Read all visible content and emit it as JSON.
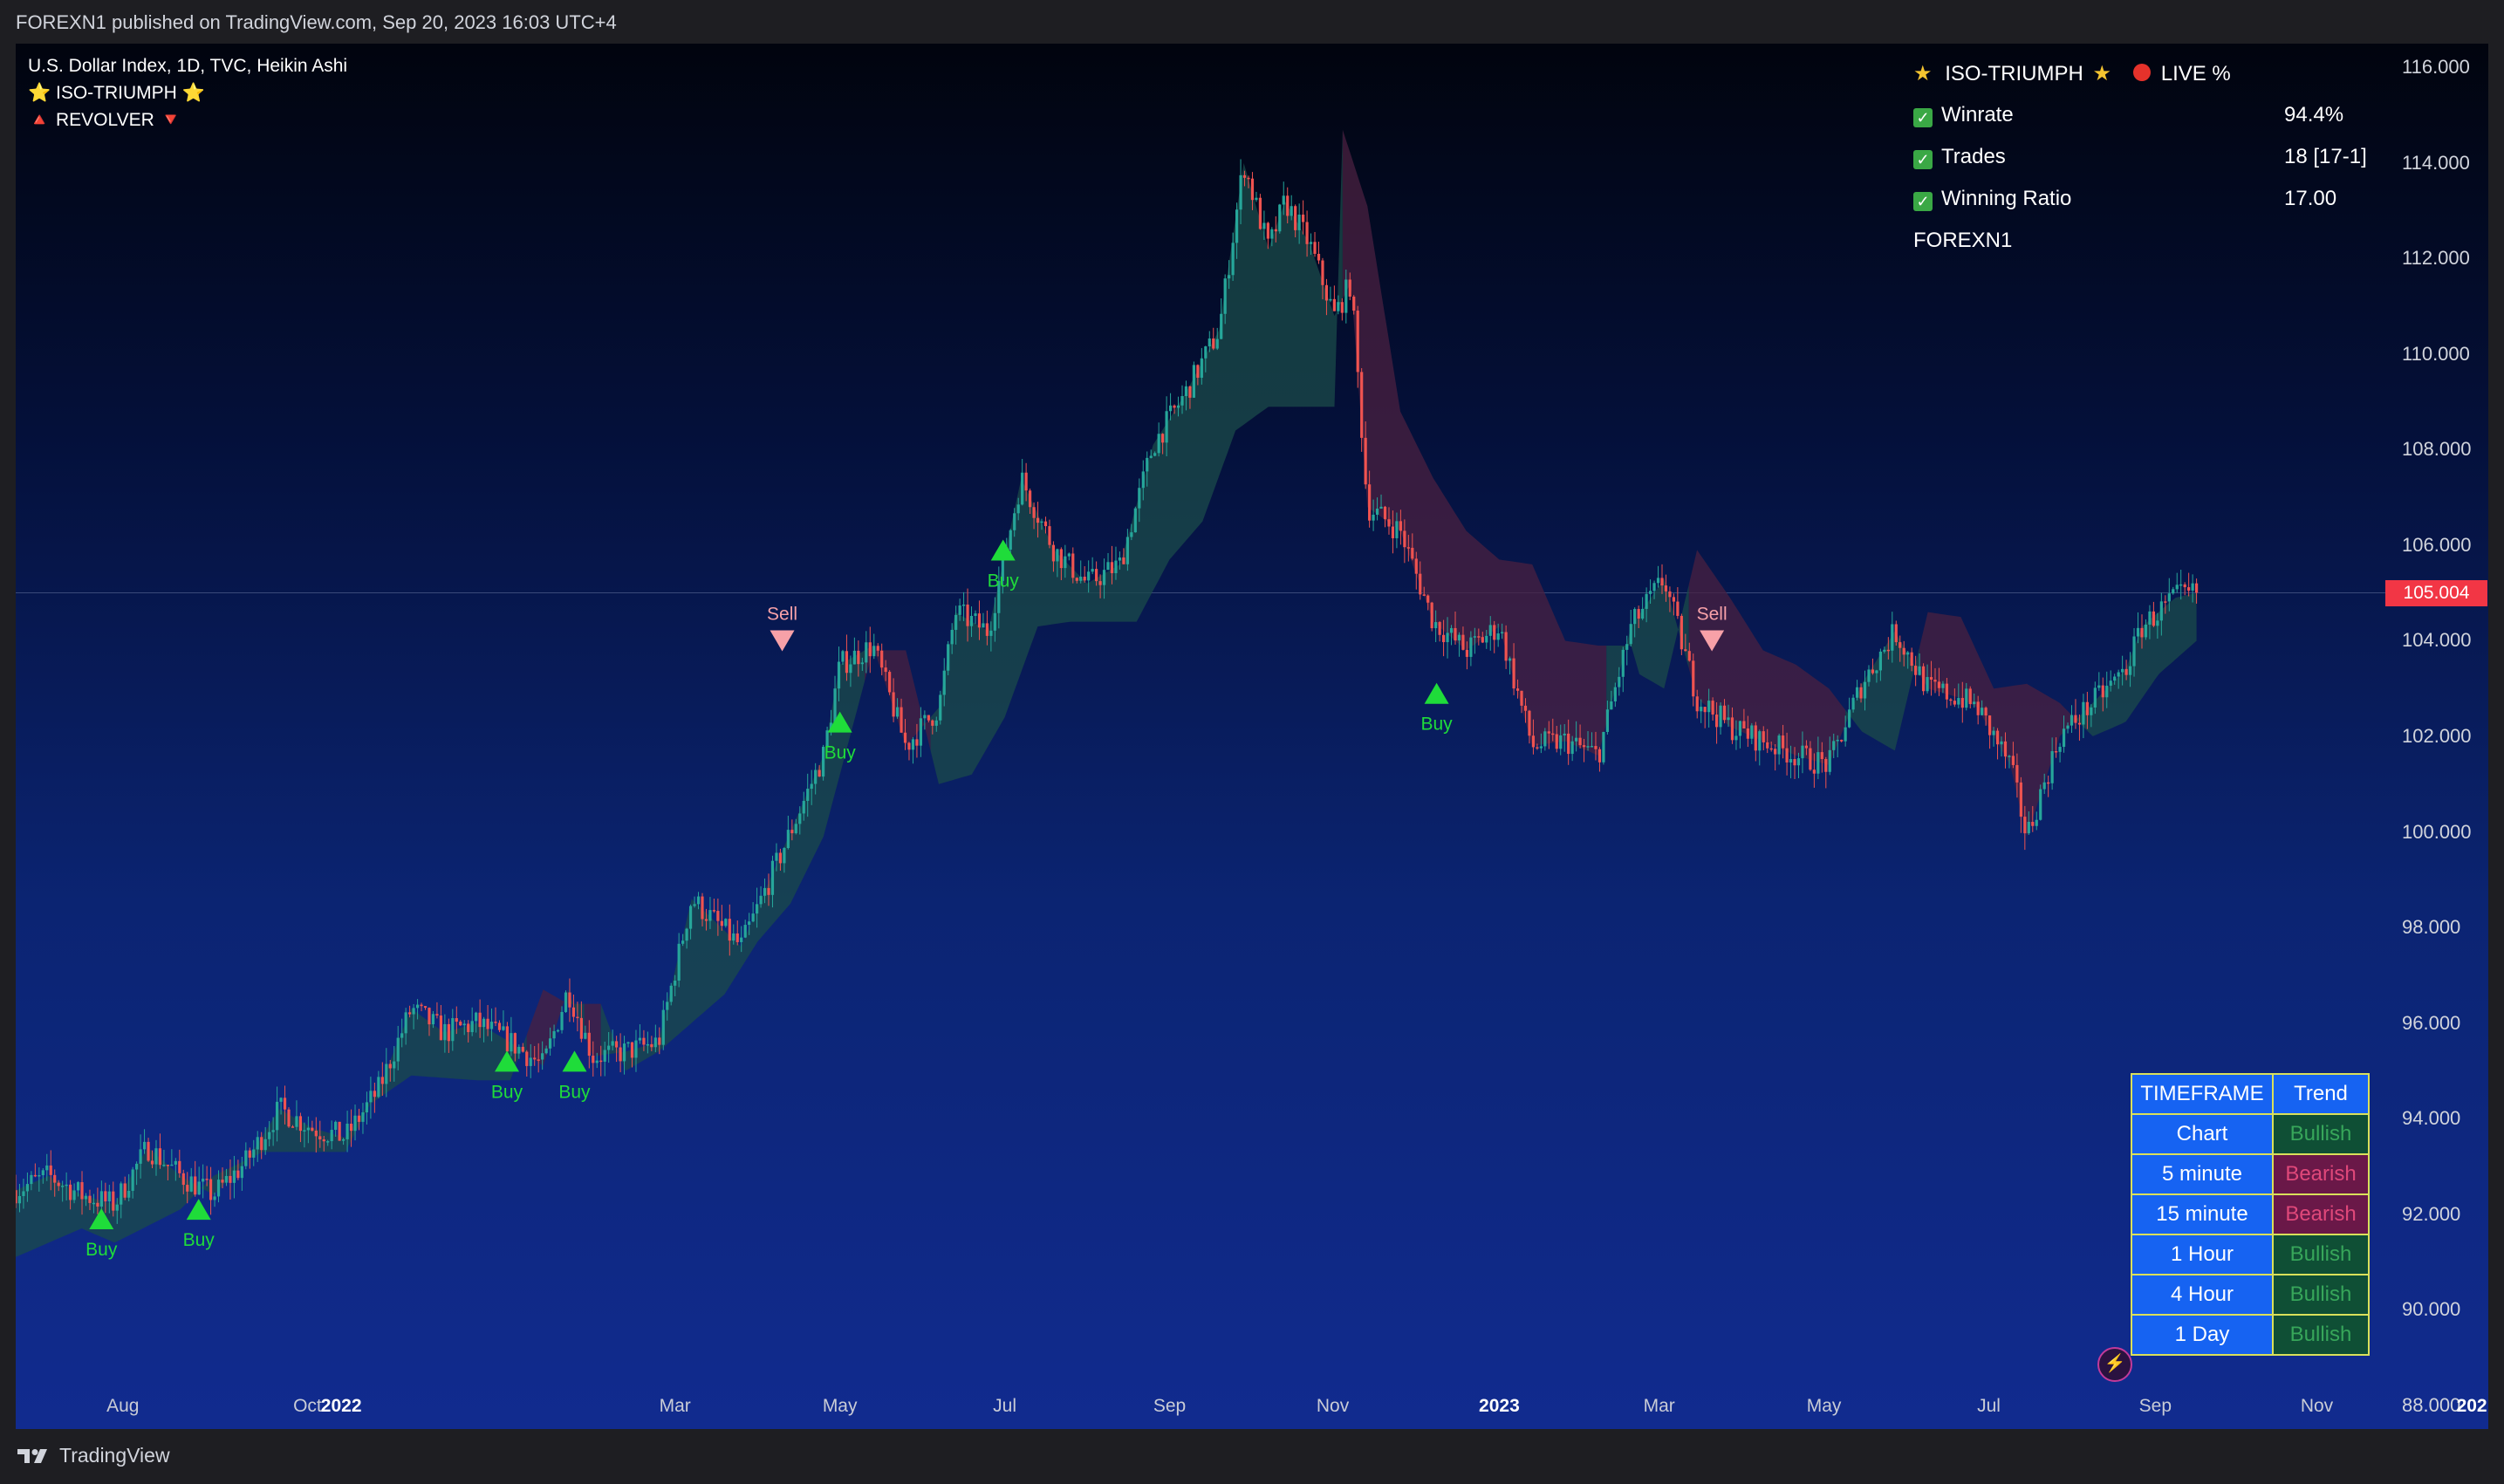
{
  "header": {
    "published": "FOREXN1 published on TradingView.com, Sep 20, 2023 16:03 UTC+4"
  },
  "legend": {
    "title": "U.S. Dollar Index, 1D, TVC, Heikin Ashi",
    "indicator1": "⭐ ISO-TRIUMPH ⭐",
    "indicator2": "🔺 REVOLVER 🔻"
  },
  "stats": {
    "header": "ISO-TRIUMPH",
    "live": "LIVE %",
    "rows": [
      {
        "label": "Winrate",
        "value": "94.4%"
      },
      {
        "label": "Trades",
        "value": "18 [17-1]"
      },
      {
        "label": "Winning Ratio",
        "value": "17.00"
      }
    ],
    "author": "FOREXN1"
  },
  "trend_table": {
    "col1": "TIMEFRAME",
    "col2": "Trend",
    "rows": [
      {
        "tf": "Chart",
        "trend": "Bullish"
      },
      {
        "tf": "5 minute",
        "trend": "Bearish"
      },
      {
        "tf": "15 minute",
        "trend": "Bearish"
      },
      {
        "tf": "1 Hour",
        "trend": "Bullish"
      },
      {
        "tf": "4 Hour",
        "trend": "Bullish"
      },
      {
        "tf": "1 Day",
        "trend": "Bullish"
      }
    ]
  },
  "price_tag": "105.004",
  "footer": {
    "brand": "TradingView"
  },
  "colors": {
    "up": "#26a69a",
    "down": "#ef5350",
    "bull_fill": "#1b4b4a",
    "bear_fill": "#4a2040",
    "buy": "#1fdc3a",
    "sell": "#f7a1a8"
  },
  "chart_data": {
    "type": "candlestick",
    "ylim": [
      87.5,
      116.5
    ],
    "y_ticks": [
      "116.000",
      "114.000",
      "112.000",
      "110.000",
      "108.000",
      "106.000",
      "104.000",
      "102.000",
      "100.000",
      "98.000",
      "96.000",
      "94.000",
      "92.000",
      "90.000",
      "88.000"
    ],
    "y_tick_values": [
      116,
      114,
      112,
      110,
      108,
      106,
      104,
      102,
      100,
      98,
      96,
      94,
      92,
      90,
      88
    ],
    "x_ticks": [
      {
        "label": "Aug",
        "x": 0.065
      },
      {
        "label": "Oct",
        "x": 0.177
      },
      {
        "label": "2022",
        "x": 0.1975,
        "year": true
      },
      {
        "label": "Mar",
        "x": 0.4
      },
      {
        "label": "May",
        "x": 0.5
      },
      {
        "label": "Jul",
        "x": 0.6
      },
      {
        "label": "Sep",
        "x": 0.7
      },
      {
        "label": "Nov",
        "x": 0.799
      },
      {
        "label": "2023",
        "x": 0.9,
        "year": true
      },
      {
        "label": "Mar",
        "x": 0.997
      },
      {
        "label": "May",
        "x": 1.097
      },
      {
        "label": "Jul",
        "x": 1.197
      },
      {
        "label": "Sep",
        "x": 1.298
      },
      {
        "label": "Nov",
        "x": 1.396
      },
      {
        "label": "202",
        "x": 1.49,
        "year": true
      }
    ],
    "price_path": [
      [
        0.0,
        92.5
      ],
      [
        0.02,
        92.8
      ],
      [
        0.04,
        92.4
      ],
      [
        0.06,
        92.2
      ],
      [
        0.08,
        93.4
      ],
      [
        0.1,
        92.8
      ],
      [
        0.12,
        92.4
      ],
      [
        0.14,
        93.1
      ],
      [
        0.16,
        94.2
      ],
      [
        0.18,
        93.8
      ],
      [
        0.2,
        93.6
      ],
      [
        0.22,
        94.6
      ],
      [
        0.24,
        96.3
      ],
      [
        0.26,
        95.8
      ],
      [
        0.28,
        96.0
      ],
      [
        0.3,
        95.6
      ],
      [
        0.32,
        95.1
      ],
      [
        0.335,
        96.7
      ],
      [
        0.35,
        95.3
      ],
      [
        0.37,
        95.4
      ],
      [
        0.39,
        95.6
      ],
      [
        0.41,
        98.6
      ],
      [
        0.44,
        97.6
      ],
      [
        0.46,
        99.2
      ],
      [
        0.49,
        101.6
      ],
      [
        0.5,
        103.5
      ],
      [
        0.52,
        103.9
      ],
      [
        0.54,
        101.8
      ],
      [
        0.56,
        102.6
      ],
      [
        0.57,
        104.6
      ],
      [
        0.59,
        104.2
      ],
      [
        0.61,
        107.4
      ],
      [
        0.63,
        105.9
      ],
      [
        0.65,
        105.2
      ],
      [
        0.67,
        105.6
      ],
      [
        0.69,
        108.1
      ],
      [
        0.71,
        109.2
      ],
      [
        0.73,
        110.5
      ],
      [
        0.745,
        114.0
      ],
      [
        0.76,
        112.2
      ],
      [
        0.77,
        113.2
      ],
      [
        0.785,
        112.3
      ],
      [
        0.8,
        110.8
      ],
      [
        0.81,
        111.5
      ],
      [
        0.82,
        106.8
      ],
      [
        0.84,
        106.3
      ],
      [
        0.86,
        104.4
      ],
      [
        0.88,
        103.8
      ],
      [
        0.9,
        104.3
      ],
      [
        0.92,
        101.8
      ],
      [
        0.94,
        101.9
      ],
      [
        0.96,
        101.6
      ],
      [
        0.98,
        104.3
      ],
      [
        1.0,
        105.3
      ],
      [
        1.02,
        102.8
      ],
      [
        1.04,
        102.2
      ],
      [
        1.06,
        101.9
      ],
      [
        1.08,
        101.6
      ],
      [
        1.1,
        101.4
      ],
      [
        1.12,
        103.1
      ],
      [
        1.14,
        104.2
      ],
      [
        1.16,
        103.0
      ],
      [
        1.18,
        102.8
      ],
      [
        1.19,
        102.6
      ],
      [
        1.21,
        101.4
      ],
      [
        1.22,
        99.9
      ],
      [
        1.24,
        102.0
      ],
      [
        1.26,
        102.7
      ],
      [
        1.28,
        103.4
      ],
      [
        1.29,
        104.3
      ],
      [
        1.31,
        104.9
      ],
      [
        1.323,
        105.0
      ]
    ],
    "stop_path": [
      [
        0.0,
        91.1
      ],
      [
        0.04,
        91.7
      ],
      [
        0.06,
        91.4
      ],
      [
        0.1,
        92.1
      ],
      [
        0.12,
        92.8
      ],
      [
        0.15,
        93.3
      ],
      [
        0.17,
        93.3
      ],
      [
        0.2,
        93.3
      ],
      [
        0.215,
        94.3
      ],
      [
        0.24,
        94.9
      ],
      [
        0.28,
        94.8
      ],
      [
        0.3,
        94.8
      ],
      [
        0.32,
        96.7
      ],
      [
        0.335,
        96.4
      ],
      [
        0.345,
        96.4
      ],
      [
        0.355,
        96.4
      ],
      [
        0.37,
        95.0
      ],
      [
        0.39,
        95.4
      ],
      [
        0.41,
        96.0
      ],
      [
        0.43,
        96.6
      ],
      [
        0.45,
        97.7
      ],
      [
        0.47,
        98.5
      ],
      [
        0.49,
        99.9
      ],
      [
        0.5,
        101.2
      ],
      [
        0.52,
        103.8
      ],
      [
        0.54,
        103.8
      ],
      [
        0.56,
        101.0
      ],
      [
        0.58,
        101.2
      ],
      [
        0.6,
        102.4
      ],
      [
        0.62,
        104.3
      ],
      [
        0.64,
        104.4
      ],
      [
        0.68,
        104.4
      ],
      [
        0.7,
        105.7
      ],
      [
        0.72,
        106.5
      ],
      [
        0.74,
        108.4
      ],
      [
        0.76,
        108.9
      ],
      [
        0.8,
        108.9
      ],
      [
        0.805,
        114.7
      ],
      [
        0.82,
        113.1
      ],
      [
        0.84,
        108.8
      ],
      [
        0.86,
        107.4
      ],
      [
        0.88,
        106.3
      ],
      [
        0.9,
        105.7
      ],
      [
        0.92,
        105.6
      ],
      [
        0.94,
        104.0
      ],
      [
        0.96,
        103.9
      ],
      [
        0.98,
        103.9
      ],
      [
        0.985,
        103.3
      ],
      [
        1.0,
        103.0
      ],
      [
        1.02,
        105.9
      ],
      [
        1.04,
        104.9
      ],
      [
        1.06,
        103.8
      ],
      [
        1.08,
        103.5
      ],
      [
        1.1,
        103.0
      ],
      [
        1.12,
        102.1
      ],
      [
        1.14,
        101.7
      ],
      [
        1.16,
        104.6
      ],
      [
        1.18,
        104.5
      ],
      [
        1.2,
        103.0
      ],
      [
        1.22,
        103.1
      ],
      [
        1.24,
        102.7
      ],
      [
        1.26,
        102.0
      ],
      [
        1.28,
        102.3
      ],
      [
        1.3,
        103.3
      ],
      [
        1.323,
        104.0
      ]
    ],
    "regimes": [
      [
        0.0,
        0.31,
        "bull"
      ],
      [
        0.31,
        0.335,
        "bear"
      ],
      [
        0.335,
        0.345,
        "bull"
      ],
      [
        0.345,
        0.355,
        "bear"
      ],
      [
        0.355,
        0.515,
        "bull"
      ],
      [
        0.515,
        0.555,
        "bear"
      ],
      [
        0.555,
        0.805,
        "bull"
      ],
      [
        0.805,
        0.965,
        "bear"
      ],
      [
        0.965,
        1.015,
        "bull"
      ],
      [
        1.015,
        1.11,
        "bear"
      ],
      [
        1.11,
        1.155,
        "bull"
      ],
      [
        1.155,
        1.25,
        "bear"
      ],
      [
        1.25,
        1.323,
        "bull"
      ]
    ],
    "signals": [
      {
        "type": "buy",
        "label": "Buy",
        "x": 0.052,
        "price": 91.9
      },
      {
        "type": "buy",
        "label": "Buy",
        "x": 0.111,
        "price": 92.1
      },
      {
        "type": "buy",
        "label": "Buy",
        "x": 0.298,
        "price": 95.2
      },
      {
        "type": "buy",
        "label": "Buy",
        "x": 0.339,
        "price": 95.2
      },
      {
        "type": "sell",
        "label": "Sell",
        "x": 0.465,
        "price": 104.0
      },
      {
        "type": "buy",
        "label": "Buy",
        "x": 0.5,
        "price": 102.3
      },
      {
        "type": "buy",
        "label": "Buy",
        "x": 0.599,
        "price": 105.9
      },
      {
        "type": "buy",
        "label": "Buy",
        "x": 0.862,
        "price": 102.9
      },
      {
        "type": "sell",
        "label": "Sell",
        "x": 1.029,
        "price": 104.0
      }
    ],
    "last_price": 105.004
  }
}
